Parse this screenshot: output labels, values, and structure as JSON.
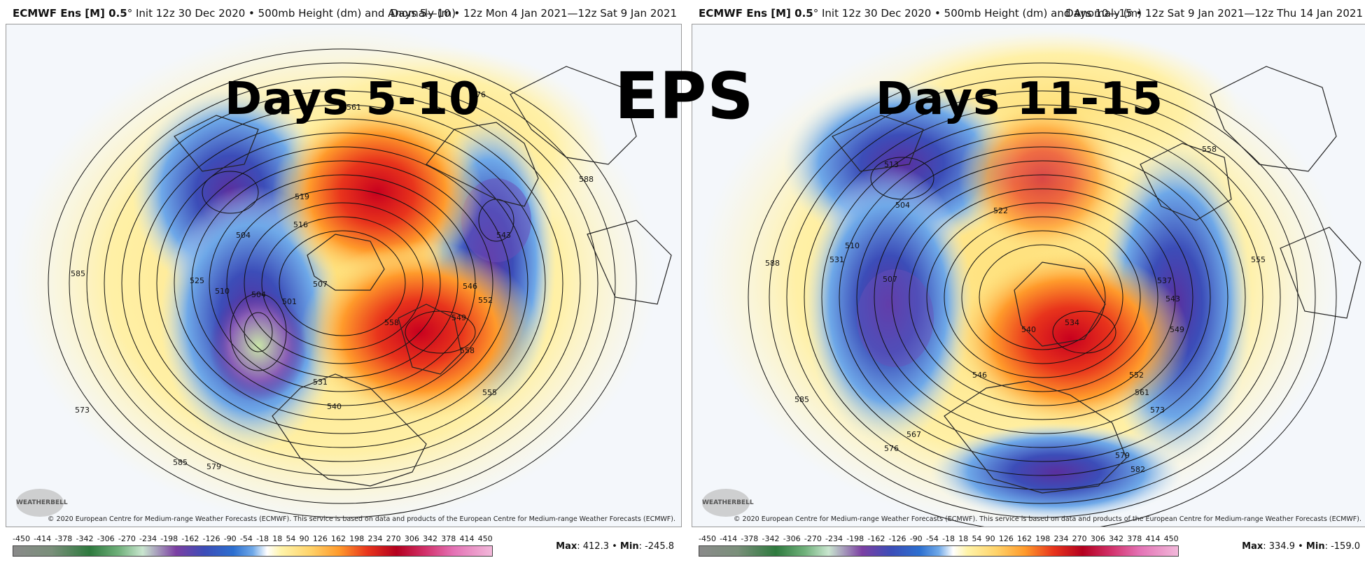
{
  "center_title": "EPS",
  "panels": [
    {
      "header_model": "ECMWF Ens [M] 0.5",
      "header_rest": "° Init 12z 30 Dec 2020 • 500mb Height (dm) and Anomaly (m)",
      "header_right": "Days 5—10 • 12z Mon 4 Jan 2021—12z Sat 9 Jan 2021",
      "overlay_title": "Days 5-10",
      "copyright": "© 2020 European Centre for Medium-range Weather Forecasts (ECMWF). This service is based on data and products of the European Centre for Medium-range Weather Forecasts (ECMWF).",
      "logo_text": "WEATHERBELL",
      "max_label": "Max",
      "max_value": ": 412.3",
      "min_label": "Min",
      "min_value": ": -245.8",
      "contour_labels": [
        "561",
        "576",
        "588",
        "585",
        "573",
        "579",
        "585",
        "519",
        "516",
        "504",
        "510",
        "525",
        "504",
        "501",
        "507",
        "531",
        "540",
        "558",
        "549",
        "552",
        "546",
        "558",
        "543",
        "555"
      ]
    },
    {
      "header_model": "ECMWF Ens [M] 0.5",
      "header_rest": "° Init 12z 30 Dec 2020 • 500mb Height (dm) and Anomaly (m)",
      "header_right": "Days 10—15 • 12z Sat 9 Jan 2021—12z Thu 14 Jan 2021",
      "overlay_title": "Days 11-15",
      "copyright": "© 2020 European Centre for Medium-range Weather Forecasts (ECMWF). This service is based on data and products of the European Centre for Medium-range Weather Forecasts (ECMWF).",
      "logo_text": "WEATHERBELL",
      "max_label": "Max",
      "max_value": ": 334.9",
      "min_label": "Min",
      "min_value": ": -159.0",
      "contour_labels": [
        "558",
        "588",
        "585",
        "576",
        "567",
        "531",
        "510",
        "513",
        "504",
        "507",
        "522",
        "546",
        "552",
        "561",
        "573",
        "579",
        "582",
        "549",
        "543",
        "537",
        "555",
        "534",
        "540"
      ]
    }
  ],
  "colorbar_ticks": [
    "-450",
    "-414",
    "-378",
    "-342",
    "-306",
    "-270",
    "-234",
    "-198",
    "-162",
    "-126",
    "-90",
    "-54",
    "-18",
    "18",
    "54",
    "90",
    "126",
    "162",
    "198",
    "234",
    "270",
    "306",
    "342",
    "378",
    "414",
    "450"
  ],
  "colors": {
    "positive_strong": "#c8001e",
    "positive_mid": "#ff7a1a",
    "positive_weak": "#fde98a",
    "negative_strong": "#5a2f9e",
    "negative_mid": "#2c6fd0",
    "negative_weak": "#9cc4f0"
  }
}
